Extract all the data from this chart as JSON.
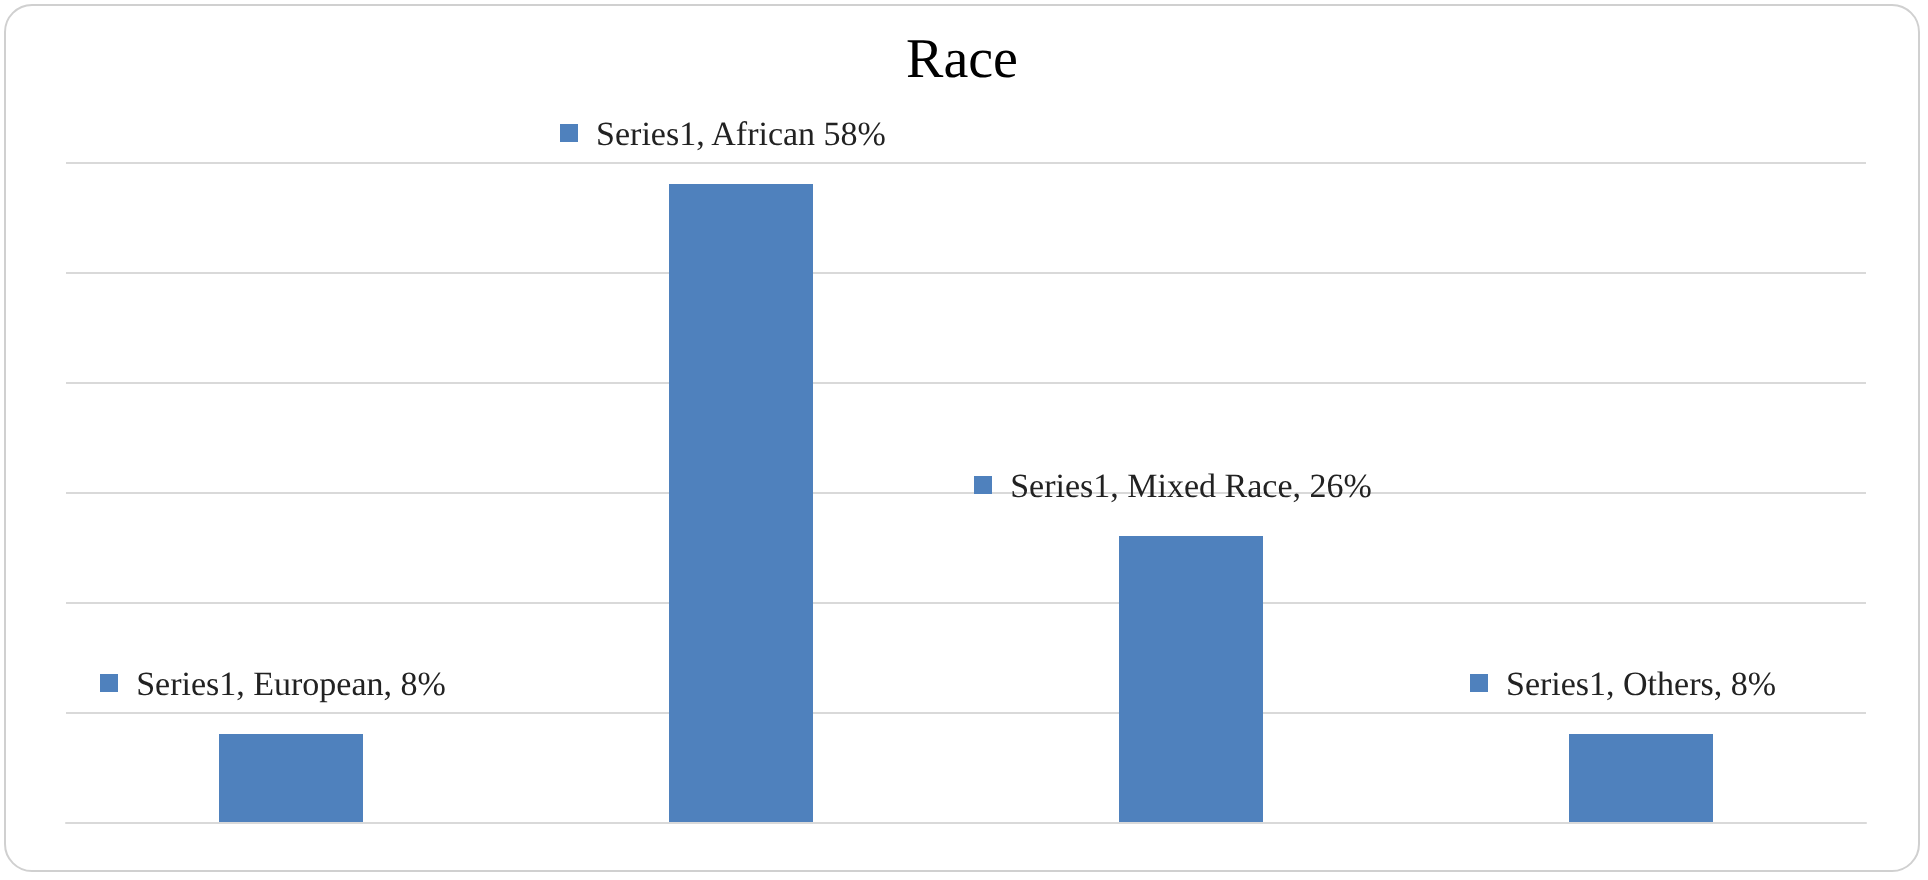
{
  "chart_data": {
    "type": "bar",
    "title": "Race",
    "categories": [
      null,
      null,
      null,
      null
    ],
    "series": [
      {
        "color": "#4f81bd",
        "values": [
          8,
          58,
          26,
          8
        ],
        "value_labels": [
          "Series1, European, 8%",
          "Series1, African 58%",
          "Series1, Mixed Race, 26%",
          "Series1, Others, 8%"
        ]
      }
    ],
    "tick_labels": false,
    "grid": "y"
  }
}
